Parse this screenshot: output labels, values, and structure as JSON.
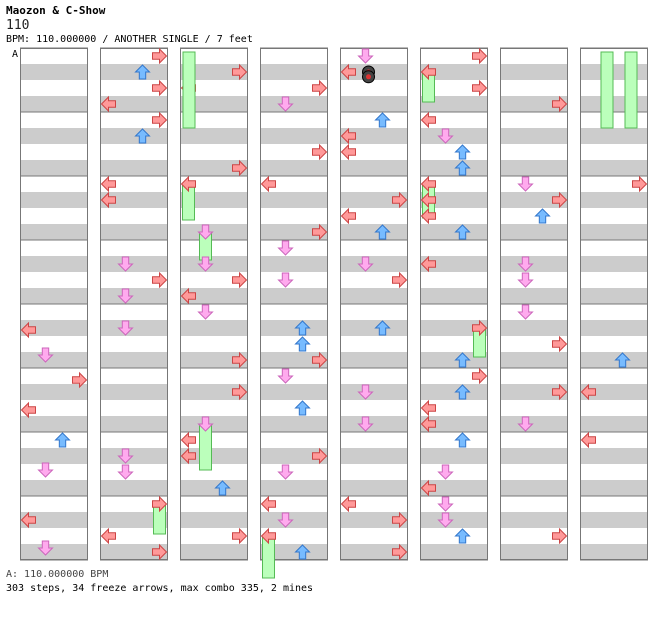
{
  "song": {
    "artist": "Maozon & C-Show",
    "title": "110",
    "bpm_line": "BPM: 110.000000 / ANOTHER SINGLE / 7 feet"
  },
  "chart": {
    "section_marker": "A",
    "columns": 8,
    "measures_per_column": 8,
    "lanes": [
      "left",
      "down",
      "up",
      "right"
    ],
    "colors": {
      "left": "#ff9999",
      "down": "#ffaaee",
      "up": "#77bbff",
      "right": "#ff9999",
      "freeze": "#bbffbb",
      "freeze_stroke": "#55bb55",
      "band": "#cccccc",
      "frame": "#777777"
    },
    "mines": [
      {
        "column": 4,
        "measure": 0,
        "beat": 1.5,
        "lane": 1
      },
      {
        "column": 4,
        "measure": 0,
        "beat": 1.8,
        "lane": 1
      }
    ]
  },
  "footer": {
    "bpm_summary": "A: 110.000000 BPM",
    "stats": "303 steps, 34 freeze arrows, max combo 335, 2 mines"
  }
}
